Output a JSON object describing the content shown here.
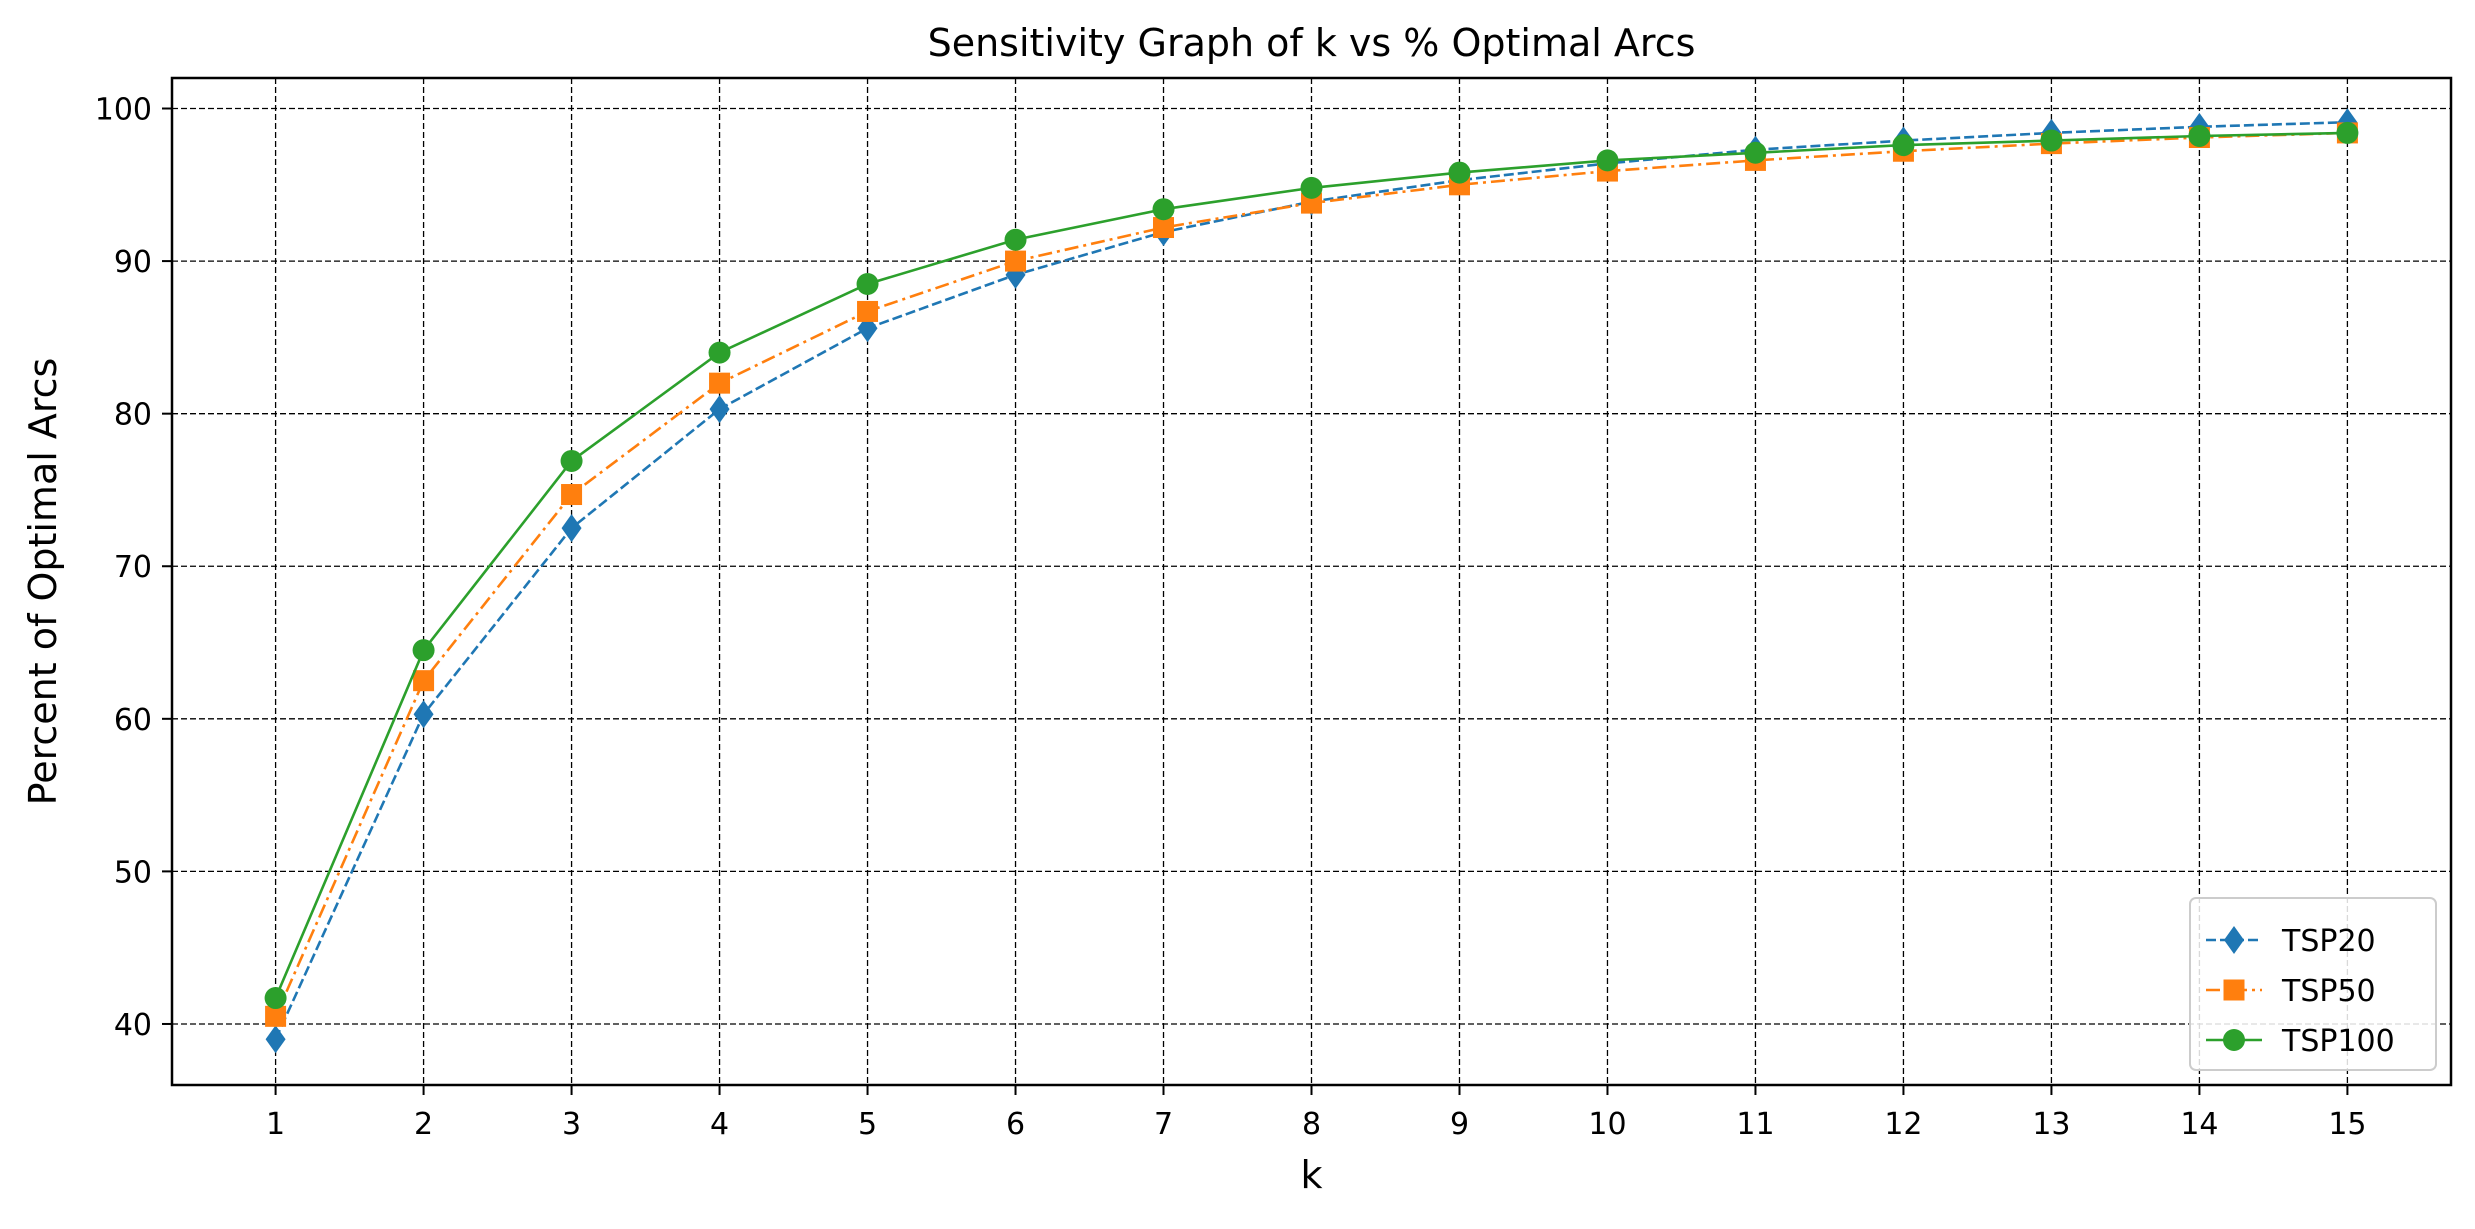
{
  "chart_data": {
    "type": "line",
    "title": "Sensitivity Graph of k vs % Optimal Arcs",
    "xlabel": "k",
    "ylabel": "Percent of Optimal Arcs",
    "x": [
      1,
      2,
      3,
      4,
      5,
      6,
      7,
      8,
      9,
      10,
      11,
      12,
      13,
      14,
      15
    ],
    "xlim": [
      0.3,
      15.7
    ],
    "ylim": [
      36.0,
      102.0
    ],
    "xticks": [
      "1",
      "2",
      "3",
      "4",
      "5",
      "6",
      "7",
      "8",
      "9",
      "10",
      "11",
      "12",
      "13",
      "14",
      "15"
    ],
    "yticks": [
      "40",
      "50",
      "60",
      "70",
      "80",
      "90",
      "100"
    ],
    "grid": true,
    "legend_position": "lower right",
    "series": [
      {
        "name": "TSP20",
        "color": "#1f77b4",
        "line_style": "dashed",
        "marker": "thin-diamond",
        "values": [
          39.0,
          60.3,
          72.5,
          80.3,
          85.6,
          89.1,
          91.9,
          93.9,
          95.3,
          96.4,
          97.3,
          97.9,
          98.4,
          98.8,
          99.1
        ]
      },
      {
        "name": "TSP50",
        "color": "#ff7f0e",
        "line_style": "dashdot",
        "marker": "square",
        "values": [
          40.5,
          62.5,
          74.7,
          82.0,
          86.7,
          90.0,
          92.2,
          93.8,
          95.0,
          95.9,
          96.6,
          97.2,
          97.7,
          98.1,
          98.4
        ]
      },
      {
        "name": "TSP100",
        "color": "#2ca02c",
        "line_style": "solid",
        "marker": "circle",
        "values": [
          41.7,
          64.5,
          76.9,
          84.0,
          88.5,
          91.4,
          93.4,
          94.8,
          95.8,
          96.6,
          97.1,
          97.6,
          97.9,
          98.2,
          98.4
        ]
      }
    ]
  }
}
